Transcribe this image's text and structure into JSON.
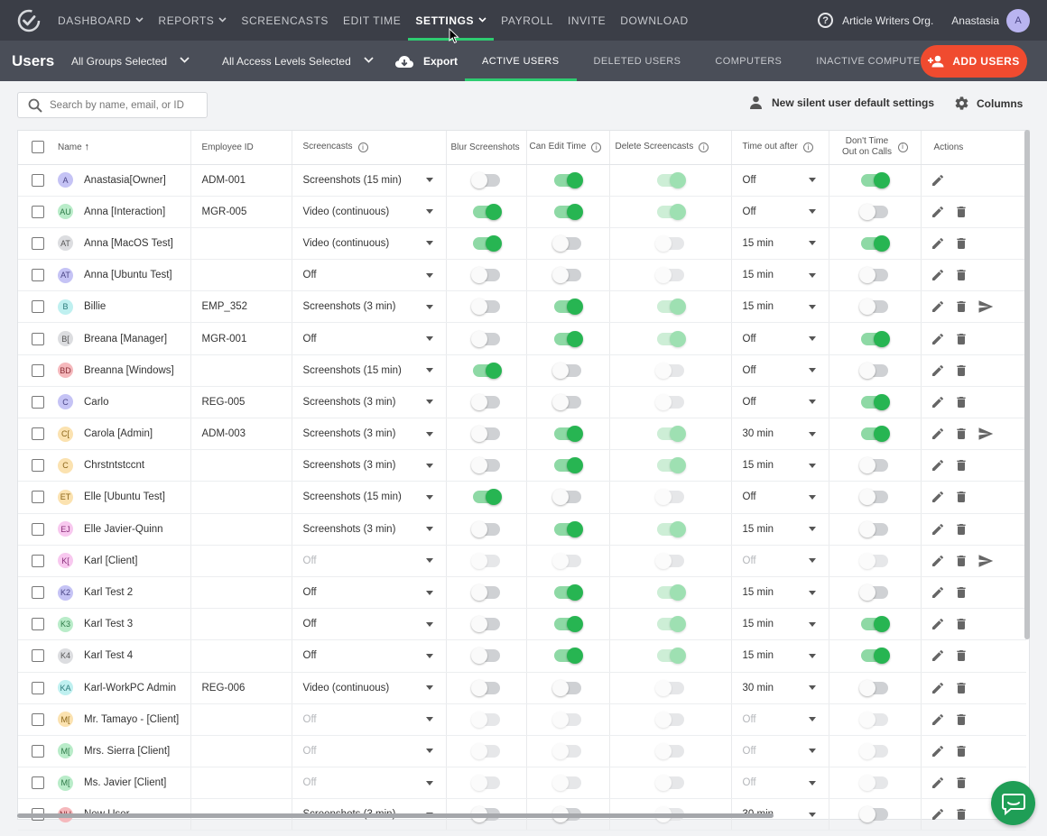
{
  "nav": {
    "items": [
      {
        "label": "DASHBOARD",
        "chevron": true
      },
      {
        "label": "REPORTS",
        "chevron": true
      },
      {
        "label": "SCREENCASTS",
        "chevron": false
      },
      {
        "label": "EDIT TIME",
        "chevron": false
      },
      {
        "label": "SETTINGS",
        "chevron": true,
        "active": true
      },
      {
        "label": "PAYROLL",
        "chevron": false
      },
      {
        "label": "INVITE",
        "chevron": false
      },
      {
        "label": "DOWNLOAD",
        "chevron": false
      }
    ],
    "org": "Article Writers Org.",
    "user": "Anastasia",
    "user_initial": "A"
  },
  "subbar": {
    "title": "Users",
    "groups_filter": "All Groups Selected",
    "access_filter": "All Access Levels Selected",
    "export": "Export",
    "tabs": [
      "ACTIVE USERS",
      "DELETED USERS",
      "COMPUTERS",
      "INACTIVE COMPUTERS"
    ],
    "add_users": "ADD USERS"
  },
  "toolbar": {
    "search_placeholder": "Search by name, email, or ID",
    "silent_settings": "New silent user default settings",
    "columns": "Columns"
  },
  "table": {
    "headers": {
      "name": "Name",
      "employee_id": "Employee ID",
      "screencasts": "Screencasts",
      "blur": "Blur Screenshots",
      "edit_time": "Can Edit Time",
      "delete_screencasts": "Delete Screencasts",
      "timeout": "Time out after",
      "dont_timeout": "Don't Time Out on Calls",
      "actions": "Actions"
    },
    "rows": [
      {
        "initials": "A",
        "color": "#c5c3f5",
        "fg": "#4a4585",
        "name": "Anastasia[Owner]",
        "emp": "ADM-001",
        "sc": "Screenshots (15 min)",
        "blur": false,
        "edit": true,
        "del": true,
        "timeout": "Off",
        "calls": true,
        "trash": false,
        "send": false,
        "disabled": false
      },
      {
        "initials": "AU",
        "color": "#b9ecc9",
        "fg": "#2e7a48",
        "name": "Anna [Interaction]",
        "emp": "MGR-005",
        "sc": "Video (continuous)",
        "blur": true,
        "edit": true,
        "del": true,
        "timeout": "Off",
        "calls": false,
        "trash": true,
        "send": false,
        "disabled": false
      },
      {
        "initials": "AT",
        "color": "#dcdde0",
        "fg": "#555",
        "name": "Anna [MacOS Test]",
        "emp": "",
        "sc": "Video (continuous)",
        "blur": true,
        "edit": false,
        "del": false,
        "timeout": "15 min",
        "calls": true,
        "trash": true,
        "send": false,
        "disabled": false
      },
      {
        "initials": "AT",
        "color": "#c5c3f5",
        "fg": "#4a4585",
        "name": "Anna [Ubuntu Test]",
        "emp": "",
        "sc": "Off",
        "blur": false,
        "edit": false,
        "del": false,
        "timeout": "15 min",
        "calls": false,
        "trash": true,
        "send": false,
        "disabled": false
      },
      {
        "initials": "B",
        "color": "#bff0f0",
        "fg": "#2b7b7b",
        "name": "Billie",
        "emp": "EMP_352",
        "sc": "Screenshots (3 min)",
        "blur": false,
        "edit": true,
        "del": true,
        "timeout": "15 min",
        "calls": false,
        "trash": true,
        "send": true,
        "disabled": false
      },
      {
        "initials": "B[",
        "color": "#dcdde0",
        "fg": "#555",
        "name": "Breana [Manager]",
        "emp": "MGR-001",
        "sc": "Off",
        "blur": false,
        "edit": true,
        "del": true,
        "timeout": "Off",
        "calls": true,
        "trash": true,
        "send": false,
        "disabled": false
      },
      {
        "initials": "BD",
        "color": "#f5b8bc",
        "fg": "#8a2f36",
        "name": "Breanna [Windows]",
        "emp": "",
        "sc": "Screenshots (15 min)",
        "blur": true,
        "edit": false,
        "del": false,
        "timeout": "Off",
        "calls": false,
        "trash": true,
        "send": false,
        "disabled": false
      },
      {
        "initials": "C",
        "color": "#c5c3f5",
        "fg": "#4a4585",
        "name": "Carlo",
        "emp": "REG-005",
        "sc": "Screenshots (3 min)",
        "blur": false,
        "edit": false,
        "del": false,
        "timeout": "Off",
        "calls": true,
        "trash": true,
        "send": false,
        "disabled": false
      },
      {
        "initials": "C[",
        "color": "#fbe2b0",
        "fg": "#8a6417",
        "name": "Carola [Admin]",
        "emp": "ADM-003",
        "sc": "Screenshots (3 min)",
        "blur": false,
        "edit": true,
        "del": true,
        "timeout": "30 min",
        "calls": true,
        "trash": true,
        "send": true,
        "disabled": false
      },
      {
        "initials": "C",
        "color": "#fbe2b0",
        "fg": "#8a6417",
        "name": "Chrstntstccnt",
        "emp": "",
        "sc": "Screenshots (3 min)",
        "blur": false,
        "edit": true,
        "del": true,
        "timeout": "15 min",
        "calls": false,
        "trash": true,
        "send": false,
        "disabled": false
      },
      {
        "initials": "ET",
        "color": "#fbe2b0",
        "fg": "#8a6417",
        "name": "Elle [Ubuntu Test]",
        "emp": "",
        "sc": "Screenshots (15 min)",
        "blur": true,
        "edit": false,
        "del": false,
        "timeout": "Off",
        "calls": false,
        "trash": true,
        "send": false,
        "disabled": false
      },
      {
        "initials": "EJ",
        "color": "#f8c8ef",
        "fg": "#8a2f7a",
        "name": "Elle Javier-Quinn",
        "emp": "",
        "sc": "Screenshots (3 min)",
        "blur": false,
        "edit": true,
        "del": true,
        "timeout": "15 min",
        "calls": false,
        "trash": true,
        "send": false,
        "disabled": false
      },
      {
        "initials": "K[",
        "color": "#f8c8ef",
        "fg": "#8a2f7a",
        "name": "Karl [Client]",
        "emp": "",
        "sc": "Off",
        "blur": false,
        "edit": false,
        "del": false,
        "timeout": "Off",
        "calls": false,
        "trash": true,
        "send": true,
        "disabled": true
      },
      {
        "initials": "K2",
        "color": "#c5c3f5",
        "fg": "#4a4585",
        "name": "Karl Test 2",
        "emp": "",
        "sc": "Off",
        "blur": false,
        "edit": true,
        "del": true,
        "timeout": "15 min",
        "calls": false,
        "trash": true,
        "send": false,
        "disabled": false
      },
      {
        "initials": "K3",
        "color": "#b9ecc9",
        "fg": "#2e7a48",
        "name": "Karl Test 3",
        "emp": "",
        "sc": "Off",
        "blur": false,
        "edit": true,
        "del": true,
        "timeout": "15 min",
        "calls": true,
        "trash": true,
        "send": false,
        "disabled": false
      },
      {
        "initials": "K4",
        "color": "#dcdde0",
        "fg": "#555",
        "name": "Karl Test 4",
        "emp": "",
        "sc": "Off",
        "blur": false,
        "edit": true,
        "del": true,
        "timeout": "15 min",
        "calls": true,
        "trash": true,
        "send": false,
        "disabled": false
      },
      {
        "initials": "KA",
        "color": "#bff0f0",
        "fg": "#2b7b7b",
        "name": "Karl-WorkPC Admin",
        "emp": "REG-006",
        "sc": "Video (continuous)",
        "blur": false,
        "edit": false,
        "del": false,
        "timeout": "30 min",
        "calls": false,
        "trash": true,
        "send": false,
        "disabled": false
      },
      {
        "initials": "M[",
        "color": "#fbe2b0",
        "fg": "#8a6417",
        "name": "Mr. Tamayo - [Client]",
        "emp": "",
        "sc": "Off",
        "blur": false,
        "edit": false,
        "del": false,
        "timeout": "Off",
        "calls": false,
        "trash": true,
        "send": false,
        "disabled": true
      },
      {
        "initials": "M[",
        "color": "#b9ecc9",
        "fg": "#2e7a48",
        "name": "Mrs. Sierra [Client]",
        "emp": "",
        "sc": "Off",
        "blur": false,
        "edit": false,
        "del": false,
        "timeout": "Off",
        "calls": false,
        "trash": true,
        "send": false,
        "disabled": true
      },
      {
        "initials": "M[",
        "color": "#b9ecc9",
        "fg": "#2e7a48",
        "name": "Ms. Javier [Client]",
        "emp": "",
        "sc": "Off",
        "blur": false,
        "edit": false,
        "del": false,
        "timeout": "Off",
        "calls": false,
        "trash": true,
        "send": false,
        "disabled": true
      },
      {
        "initials": "NU",
        "color": "#f5b8bc",
        "fg": "#8a2f36",
        "name": "New User",
        "emp": "",
        "sc": "Screenshots (3 min)",
        "blur": false,
        "edit": false,
        "del": false,
        "timeout": "30 min",
        "calls": false,
        "trash": true,
        "send": false,
        "disabled": false
      }
    ]
  }
}
